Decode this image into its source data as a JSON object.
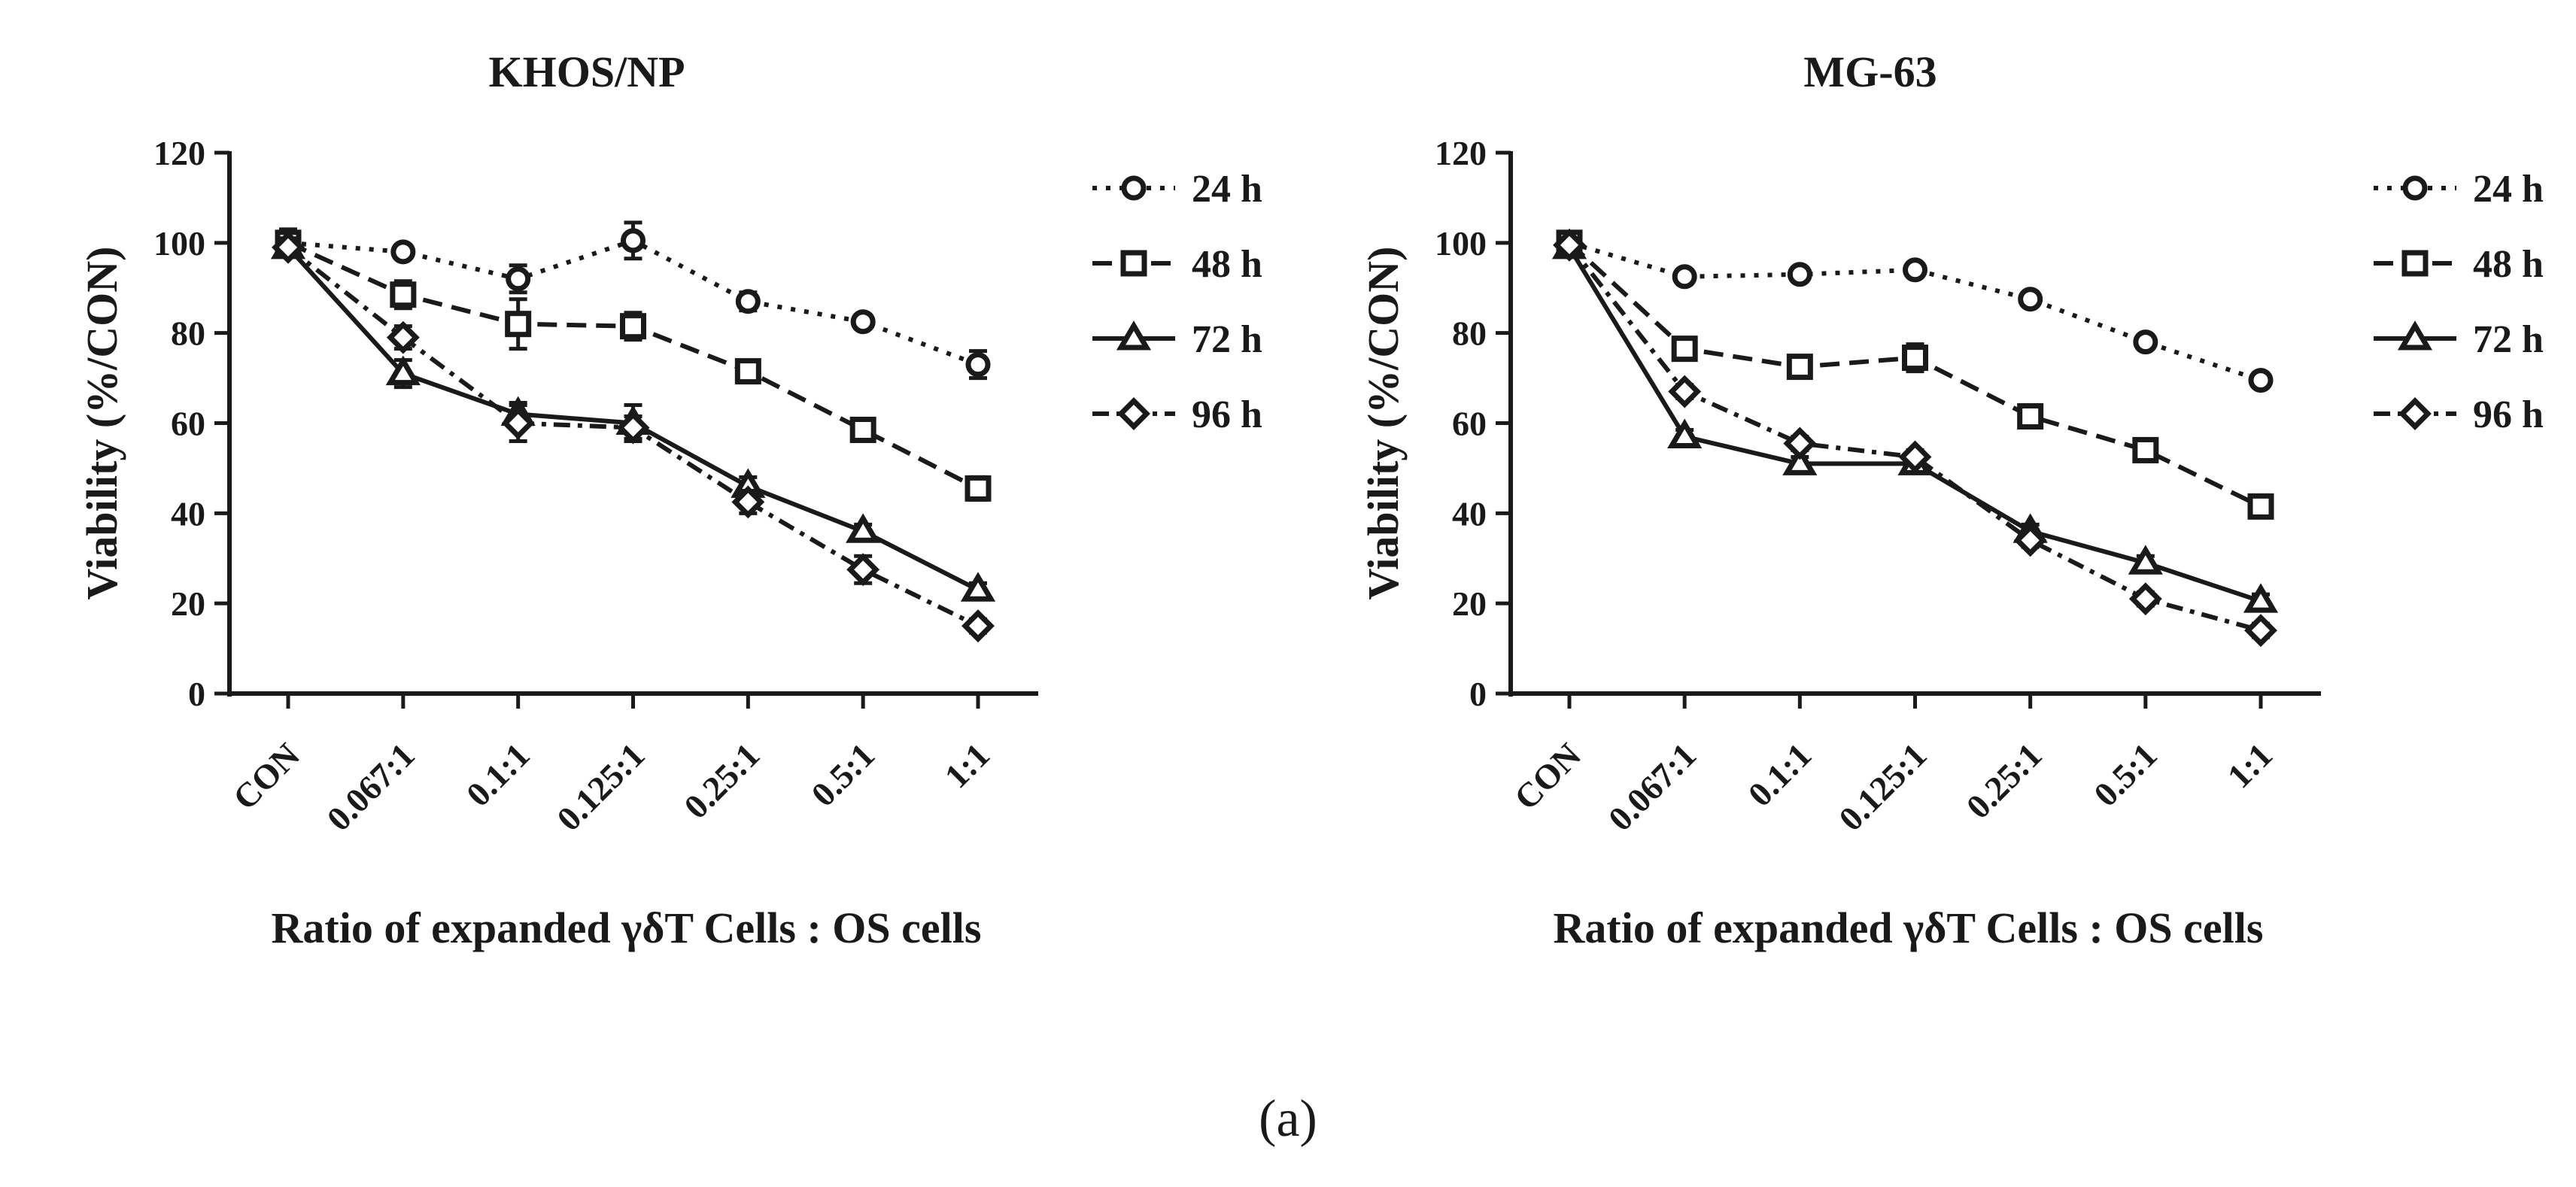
{
  "figure_label": "(a)",
  "chart_data": [
    {
      "type": "line",
      "title": "KHOS/NP",
      "xlabel": "Ratio of expanded γδT Cells : OS cells",
      "ylabel": "Viability (%/CON)",
      "categories": [
        "CON",
        "0.067:1",
        "0.1:1",
        "0.125:1",
        "0.25:1",
        "0.5:1",
        "1:1"
      ],
      "ylim": [
        0,
        120
      ],
      "yticks": [
        "0",
        "20",
        "40",
        "60",
        "80",
        "100",
        "120"
      ],
      "series": [
        {
          "name": "24 h",
          "values": [
            100,
            98,
            92,
            100.5,
            87,
            82.5,
            73
          ],
          "errors": [
            1.5,
            1.5,
            3,
            4,
            2,
            1.5,
            3
          ]
        },
        {
          "name": "48 h",
          "values": [
            100,
            88.5,
            82,
            81.5,
            71.5,
            58.5,
            45.5
          ],
          "errors": [
            3,
            3,
            5.5,
            3,
            2,
            2,
            2.5
          ]
        },
        {
          "name": "72 h",
          "values": [
            99,
            71,
            62,
            60,
            46,
            36,
            23
          ],
          "errors": [
            2,
            3,
            2.5,
            4,
            2,
            1.5,
            1.5
          ]
        },
        {
          "name": "96 h",
          "values": [
            99,
            79,
            60,
            59,
            42.5,
            27.5,
            15
          ],
          "errors": [
            2,
            2.5,
            4,
            2.5,
            2.5,
            3,
            1.5
          ]
        }
      ]
    },
    {
      "type": "line",
      "title": "MG-63",
      "xlabel": "Ratio of expanded γδT Cells : OS cells",
      "ylabel": "Viability (%/CON)",
      "categories": [
        "CON",
        "0.067:1",
        "0.1:1",
        "0.125:1",
        "0.25:1",
        "0.5:1",
        "1:1"
      ],
      "ylim": [
        0,
        120
      ],
      "yticks": [
        "0",
        "20",
        "40",
        "60",
        "80",
        "100",
        "120"
      ],
      "series": [
        {
          "name": "24 h",
          "values": [
            100,
            92.5,
            93,
            94,
            87.5,
            78,
            69.5
          ],
          "errors": [
            1,
            1.5,
            1.5,
            1.5,
            1.5,
            1.5,
            1.5
          ]
        },
        {
          "name": "48 h",
          "values": [
            100,
            76.5,
            72.5,
            74.5,
            61.5,
            54,
            41.5
          ],
          "errors": [
            1.5,
            2,
            1.5,
            3,
            2.5,
            2,
            2
          ]
        },
        {
          "name": "72 h",
          "values": [
            99,
            57,
            51,
            51,
            36,
            29,
            20.5
          ],
          "errors": [
            1.5,
            1.5,
            1.5,
            1.5,
            1.5,
            1.5,
            1.5
          ]
        },
        {
          "name": "96 h",
          "values": [
            99.5,
            67,
            55.5,
            52.5,
            34,
            21,
            14
          ],
          "errors": [
            1,
            1.5,
            1.5,
            1.5,
            1.5,
            1.5,
            1.5
          ]
        }
      ]
    }
  ]
}
